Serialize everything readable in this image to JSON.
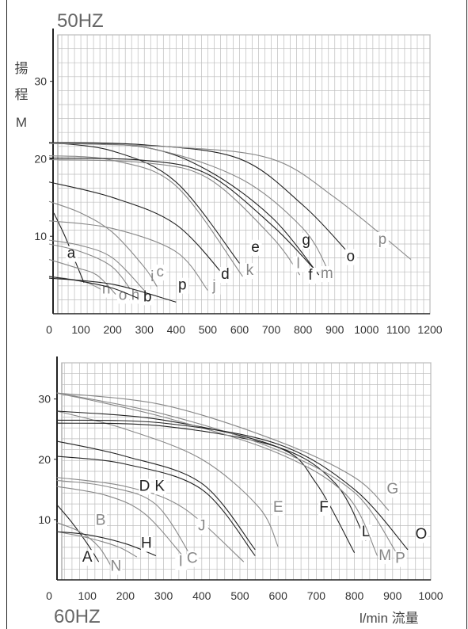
{
  "chart_data": [
    {
      "type": "line",
      "header": "50HZ",
      "ylabel": [
        "揚",
        "程",
        "M"
      ],
      "xlim": [
        0,
        1200
      ],
      "ylim": [
        0,
        36
      ],
      "xticks": [
        0,
        100,
        200,
        300,
        400,
        500,
        600,
        700,
        800,
        900,
        1000,
        1100,
        1200
      ],
      "yticks": [
        10,
        20,
        30
      ],
      "grid": true,
      "series": [
        {
          "name": "a",
          "x": [
            15,
            50,
            80,
            110
          ],
          "y": [
            13,
            10,
            7,
            4
          ],
          "color": "#222",
          "label_at": [
            70,
            7.2
          ]
        },
        {
          "name": "n",
          "x": [
            0,
            60,
            120,
            170
          ],
          "y": [
            4.8,
            4.5,
            4,
            3
          ],
          "color": "#888",
          "label_at": [
            180,
            2.6
          ]
        },
        {
          "name": "o",
          "x": [
            0,
            80,
            150,
            210
          ],
          "y": [
            7,
            6,
            5,
            2.5
          ],
          "color": "#888",
          "label_at": [
            232,
            1.8
          ]
        },
        {
          "name": "h",
          "x": [
            0,
            100,
            200,
            270
          ],
          "y": [
            9,
            8,
            6,
            2.3
          ],
          "color": "#888",
          "label_at": [
            272,
            1.8
          ]
        },
        {
          "name": "b",
          "x": [
            0,
            100,
            200,
            280
          ],
          "y": [
            4.8,
            4.2,
            3.3,
            2
          ],
          "color": "#222",
          "label_at": [
            310,
            1.6
          ]
        },
        {
          "name": "i",
          "x": [
            0,
            100,
            200,
            300
          ],
          "y": [
            9.5,
            8.8,
            7.2,
            3
          ],
          "color": "#888",
          "label_at": [
            325,
            4.2
          ]
        },
        {
          "name": "c",
          "x": [
            0,
            100,
            200,
            300,
            340
          ],
          "y": [
            14.5,
            13,
            10.5,
            6,
            3.5
          ],
          "color": "#888",
          "label_at": [
            350,
            4.8
          ]
        },
        {
          "name": "p",
          "x": [
            0,
            200,
            400
          ],
          "y": [
            4.6,
            3.8,
            1.5
          ],
          "color": "#222",
          "label_at": [
            420,
            3.1
          ]
        },
        {
          "name": "j",
          "x": [
            0,
            200,
            400,
            500
          ],
          "y": [
            12,
            11,
            8,
            3
          ],
          "color": "#888",
          "label_at": [
            520,
            3
          ]
        },
        {
          "name": "d",
          "x": [
            0,
            200,
            400,
            560
          ],
          "y": [
            17,
            15,
            11.5,
            4.5
          ],
          "color": "#222",
          "label_at": [
            555,
            4.5
          ]
        },
        {
          "name": "k",
          "x": [
            0,
            200,
            400,
            610
          ],
          "y": [
            20.4,
            19.8,
            16.5,
            4.8
          ],
          "color": "#888",
          "label_at": [
            632,
            5
          ]
        },
        {
          "name": "e",
          "x": [
            0,
            200,
            400,
            600
          ],
          "y": [
            22.1,
            21,
            17,
            6.5
          ],
          "color": "#222",
          "label_at": [
            650,
            8
          ]
        },
        {
          "name": "l",
          "x": [
            0,
            300,
            500,
            700,
            790
          ],
          "y": [
            19.9,
            19.5,
            17.5,
            10,
            5
          ],
          "color": "#888",
          "label_at": [
            785,
            5.9
          ]
        },
        {
          "name": "g",
          "x": [
            0,
            300,
            500,
            700,
            830
          ],
          "y": [
            20.1,
            19.8,
            18,
            11.5,
            6
          ],
          "color": "#222",
          "label_at": [
            810,
            8.9
          ]
        },
        {
          "name": "f",
          "x": [
            0,
            300,
            500,
            700,
            850
          ],
          "y": [
            22.1,
            21.5,
            18.5,
            12.5,
            5
          ],
          "color": "#222",
          "label_at": [
            823,
            4.4
          ]
        },
        {
          "name": "m",
          "x": [
            0,
            300,
            600,
            800,
            880
          ],
          "y": [
            22,
            21.5,
            17.5,
            11,
            5.5
          ],
          "color": "#888",
          "label_at": [
            875,
            4.6
          ]
        },
        {
          "name": "o",
          "x": [
            0,
            300,
            600,
            800,
            940
          ],
          "y": [
            22.1,
            21.8,
            20,
            14,
            8
          ],
          "color": "#222",
          "label_at": [
            950,
            6.8
          ]
        },
        {
          "name": "p",
          "x": [
            0,
            400,
            700,
            900,
            1140
          ],
          "y": [
            22,
            21.5,
            20,
            15,
            7
          ],
          "color": "#888",
          "label_at": [
            1050,
            9
          ]
        }
      ]
    },
    {
      "type": "line",
      "header": "60HZ",
      "xlabel": "l/min 流量",
      "xlim": [
        0,
        1000
      ],
      "ylim": [
        0,
        36
      ],
      "xticks": [
        0,
        100,
        200,
        300,
        400,
        500,
        600,
        700,
        800,
        900,
        1000
      ],
      "yticks": [
        10,
        20,
        30
      ],
      "grid": true,
      "series": [
        {
          "name": "A",
          "x": [
            20,
            60,
            100,
            130
          ],
          "y": [
            12.5,
            9.5,
            6,
            3
          ],
          "color": "#222",
          "label_at": [
            100,
            3
          ]
        },
        {
          "name": "N",
          "x": [
            20,
            80,
            130,
            165
          ],
          "y": [
            9.5,
            8,
            5.5,
            2
          ],
          "color": "#888",
          "label_at": [
            175,
            1.5
          ]
        },
        {
          "name": "B",
          "x": [
            20,
            100,
            180,
            230
          ],
          "y": [
            8,
            7,
            5.5,
            3.8
          ],
          "color": "#888",
          "label_at": [
            135,
            9.1
          ]
        },
        {
          "name": "H",
          "x": [
            20,
            100,
            200,
            280
          ],
          "y": [
            8,
            7.5,
            6,
            4
          ],
          "color": "#222",
          "label_at": [
            255,
            5.3
          ]
        },
        {
          "name": "I",
          "x": [
            20,
            150,
            250,
            350
          ],
          "y": [
            15.5,
            14,
            11,
            4
          ],
          "color": "#888",
          "label_at": [
            345,
            2.3
          ]
        },
        {
          "name": "C",
          "x": [
            20,
            150,
            280,
            380
          ],
          "y": [
            16.5,
            15.5,
            12.5,
            3
          ],
          "color": "#888",
          "label_at": [
            375,
            2.8
          ]
        },
        {
          "name": "J",
          "x": [
            20,
            200,
            350,
            510
          ],
          "y": [
            17,
            15.5,
            12,
            3
          ],
          "color": "#888",
          "label_at": [
            400,
            8.2
          ]
        },
        {
          "name": "D",
          "x": [
            20,
            200,
            400,
            540
          ],
          "y": [
            23,
            20.5,
            16,
            5
          ],
          "color": "#222",
          "label_at": [
            250,
            14.8
          ]
        },
        {
          "name": "K",
          "x": [
            20,
            200,
            400,
            540
          ],
          "y": [
            20.5,
            19.2,
            15,
            4
          ],
          "color": "#222",
          "label_at": [
            290,
            14.8
          ]
        },
        {
          "name": "E",
          "x": [
            20,
            200,
            400,
            550,
            600
          ],
          "y": [
            28,
            25,
            20,
            12,
            5.5
          ],
          "color": "#888",
          "label_at": [
            600,
            11.3
          ]
        },
        {
          "name": "F",
          "x": [
            20,
            300,
            600,
            700,
            800
          ],
          "y": [
            28,
            26.5,
            22,
            16,
            4.5
          ],
          "color": "#222",
          "label_at": [
            720,
            11.3
          ]
        },
        {
          "name": "L",
          "x": [
            20,
            300,
            600,
            750,
            830
          ],
          "y": [
            26,
            25.5,
            22,
            16,
            6.5
          ],
          "color": "#222",
          "label_at": [
            830,
            7.2
          ]
        },
        {
          "name": "M",
          "x": [
            20,
            300,
            600,
            780,
            860
          ],
          "y": [
            31,
            27,
            21,
            14,
            4
          ],
          "color": "#888",
          "label_at": [
            880,
            3.3
          ]
        },
        {
          "name": "P",
          "x": [
            20,
            300,
            600,
            800,
            910
          ],
          "y": [
            31,
            27.5,
            21.5,
            14.5,
            4.5
          ],
          "color": "#888",
          "label_at": [
            920,
            2.8
          ]
        },
        {
          "name": "G",
          "x": [
            20,
            300,
            600,
            800,
            890
          ],
          "y": [
            31,
            29,
            23,
            17,
            11.5
          ],
          "color": "#888",
          "label_at": [
            900,
            14.3
          ]
        },
        {
          "name": "O",
          "x": [
            20,
            300,
            600,
            800,
            940
          ],
          "y": [
            26.5,
            26,
            22.5,
            15,
            5
          ],
          "color": "#222",
          "label_at": [
            975,
            6.8
          ]
        }
      ]
    }
  ]
}
